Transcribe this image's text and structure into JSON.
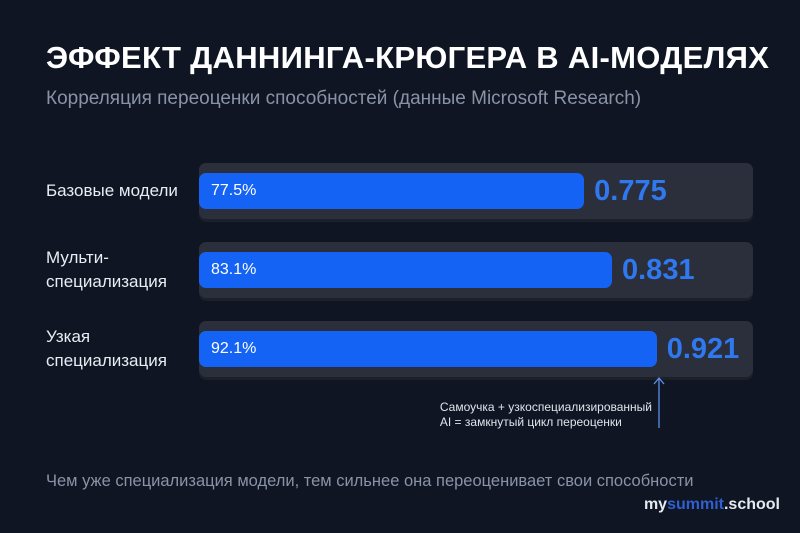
{
  "chart_data": {
    "type": "bar",
    "orientation": "horizontal",
    "title": "ЭФФЕКТ ДАННИНГА-КРЮГЕРА В AI-МОДЕЛЯХ",
    "subtitle": "Корреляция переоценки способностей (данные Microsoft Research)",
    "categories": [
      "Базовые модели",
      "Мульти-\nспециализация",
      "Узкая\nспециализация"
    ],
    "values": [
      0.775,
      0.831,
      0.921
    ],
    "value_labels": [
      "0.775",
      "0.831",
      "0.921"
    ],
    "percent_labels": [
      "77.5%",
      "83.1%",
      "92.1%"
    ],
    "xlim": [
      0,
      1
    ],
    "grid": false,
    "annotation": {
      "target_category": "Узкая\nспециализация",
      "lines": [
        "Самоучка + узкоспециализированный",
        "AI = замкнутый цикл переоценки"
      ]
    },
    "footnote": "Чем уже специализация модели, тем сильнее она переоценивает свои способности",
    "colors": {
      "background": "#0f1523",
      "bar": "#1463f5",
      "track": "#2a2f3b",
      "value_text": "#2f78f0"
    }
  },
  "logo": {
    "part1": "my",
    "part2": "summit",
    "part3": ".school"
  }
}
